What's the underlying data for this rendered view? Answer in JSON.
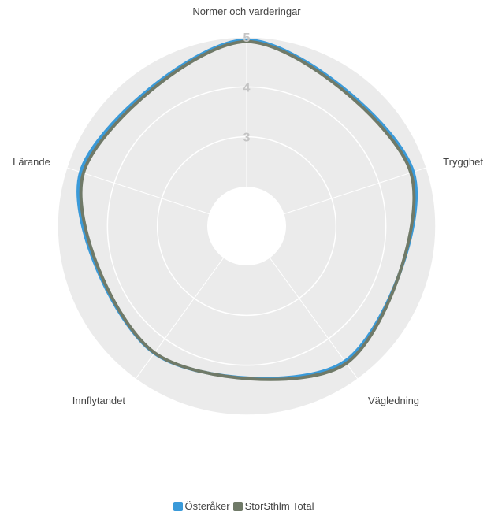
{
  "chart_data": {
    "type": "radar",
    "axes": [
      "Normer och varderingar",
      "Trygghet",
      "Vägledning",
      "Innflytandet",
      "Lärande"
    ],
    "series": [
      {
        "name": "Österåker",
        "values": [
          4.94,
          4.72,
          4.56,
          4.36,
          4.71
        ],
        "color": "#3a9ad9"
      },
      {
        "name": "StorSthlm Total",
        "values": [
          4.91,
          4.67,
          4.61,
          4.35,
          4.65
        ],
        "color": "#707a68"
      }
    ],
    "ticks": [
      "3",
      "4",
      "5"
    ],
    "rlim": [
      2,
      5
    ],
    "grid": true,
    "legend": "bottom",
    "background_color": "#ebebeb",
    "grid_color": "#ffffff"
  }
}
